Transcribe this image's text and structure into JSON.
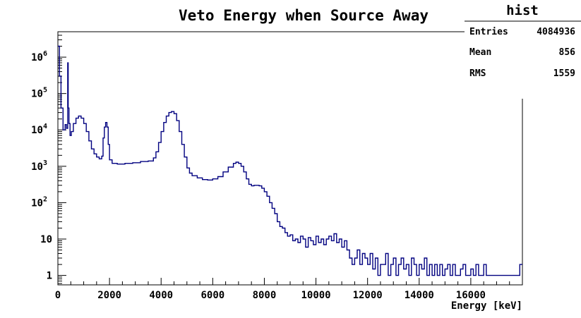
{
  "chart_data": {
    "type": "histogram",
    "title": "Veto Energy when Source Away",
    "xlabel": "Energy [keV]",
    "ylabel": "",
    "xlim": [
      0,
      18000
    ],
    "ylim": [
      0.55,
      5000000
    ],
    "yscale": "log",
    "line_color": "#000080",
    "x_ticks": [
      0,
      2000,
      4000,
      6000,
      8000,
      10000,
      12000,
      14000,
      16000
    ],
    "x_tick_labels": [
      "0",
      "2000",
      "4000",
      "6000",
      "8000",
      "10000",
      "12000",
      "14000",
      "16000"
    ],
    "y_ticks": [
      1,
      10,
      100,
      1000,
      10000,
      100000,
      1000000
    ],
    "y_tick_labels": [
      {
        "base": "1",
        "exp": ""
      },
      {
        "base": "10",
        "exp": ""
      },
      {
        "base": "10",
        "exp": "2"
      },
      {
        "base": "10",
        "exp": "3"
      },
      {
        "base": "10",
        "exp": "4"
      },
      {
        "base": "10",
        "exp": "5"
      },
      {
        "base": "10",
        "exp": "6"
      }
    ],
    "stats": {
      "name": "hist",
      "rows": [
        {
          "label": "Entries",
          "value": "4084936"
        },
        {
          "label": "Mean",
          "value": "856"
        },
        {
          "label": "RMS",
          "value": "1559"
        }
      ]
    },
    "points": [
      [
        0,
        2000000
      ],
      [
        60,
        300000
      ],
      [
        120,
        40000
      ],
      [
        200,
        10000
      ],
      [
        280,
        14000
      ],
      [
        330,
        11000
      ],
      [
        380,
        700000
      ],
      [
        400,
        40000
      ],
      [
        430,
        15000
      ],
      [
        470,
        7000
      ],
      [
        520,
        9000
      ],
      [
        600,
        15000
      ],
      [
        700,
        21000
      ],
      [
        800,
        24000
      ],
      [
        900,
        21000
      ],
      [
        1000,
        15000
      ],
      [
        1100,
        9000
      ],
      [
        1200,
        5000
      ],
      [
        1300,
        3000
      ],
      [
        1400,
        2200
      ],
      [
        1500,
        1800
      ],
      [
        1600,
        1600
      ],
      [
        1700,
        1900
      ],
      [
        1750,
        6000
      ],
      [
        1800,
        12000
      ],
      [
        1850,
        16000
      ],
      [
        1900,
        12000
      ],
      [
        1950,
        4000
      ],
      [
        2000,
        1500
      ],
      [
        2100,
        1200
      ],
      [
        2300,
        1150
      ],
      [
        2600,
        1200
      ],
      [
        2900,
        1250
      ],
      [
        3200,
        1350
      ],
      [
        3500,
        1400
      ],
      [
        3700,
        1700
      ],
      [
        3800,
        2500
      ],
      [
        3900,
        4500
      ],
      [
        4000,
        9000
      ],
      [
        4100,
        16000
      ],
      [
        4200,
        24000
      ],
      [
        4300,
        30000
      ],
      [
        4400,
        32000
      ],
      [
        4500,
        28000
      ],
      [
        4600,
        18000
      ],
      [
        4700,
        9000
      ],
      [
        4800,
        4000
      ],
      [
        4900,
        1800
      ],
      [
        5000,
        900
      ],
      [
        5100,
        650
      ],
      [
        5200,
        550
      ],
      [
        5400,
        480
      ],
      [
        5600,
        430
      ],
      [
        5800,
        420
      ],
      [
        6000,
        450
      ],
      [
        6200,
        520
      ],
      [
        6400,
        700
      ],
      [
        6600,
        950
      ],
      [
        6800,
        1200
      ],
      [
        6900,
        1300
      ],
      [
        7000,
        1200
      ],
      [
        7100,
        1000
      ],
      [
        7200,
        700
      ],
      [
        7300,
        450
      ],
      [
        7400,
        320
      ],
      [
        7500,
        290
      ],
      [
        7600,
        300
      ],
      [
        7700,
        300
      ],
      [
        7800,
        290
      ],
      [
        7900,
        250
      ],
      [
        8000,
        200
      ],
      [
        8100,
        150
      ],
      [
        8200,
        100
      ],
      [
        8300,
        70
      ],
      [
        8400,
        50
      ],
      [
        8500,
        30
      ],
      [
        8600,
        22
      ],
      [
        8700,
        20
      ],
      [
        8800,
        15
      ],
      [
        8900,
        12
      ],
      [
        9000,
        13
      ],
      [
        9100,
        9
      ],
      [
        9200,
        10
      ],
      [
        9300,
        8
      ],
      [
        9400,
        12
      ],
      [
        9500,
        10
      ],
      [
        9600,
        6
      ],
      [
        9700,
        11
      ],
      [
        9800,
        9
      ],
      [
        9900,
        7
      ],
      [
        10000,
        12
      ],
      [
        10100,
        8
      ],
      [
        10200,
        10
      ],
      [
        10300,
        7
      ],
      [
        10400,
        10
      ],
      [
        10500,
        12
      ],
      [
        10600,
        9
      ],
      [
        10700,
        14
      ],
      [
        10800,
        8
      ],
      [
        10900,
        10
      ],
      [
        11000,
        6
      ],
      [
        11100,
        9
      ],
      [
        11200,
        5
      ],
      [
        11300,
        3
      ],
      [
        11400,
        2
      ],
      [
        11500,
        3
      ],
      [
        11600,
        5
      ],
      [
        11700,
        2
      ],
      [
        11800,
        4
      ],
      [
        11900,
        3
      ],
      [
        12000,
        2
      ],
      [
        12100,
        4
      ],
      [
        12200,
        1.5
      ],
      [
        12300,
        3
      ],
      [
        12400,
        1
      ],
      [
        12500,
        2
      ],
      [
        12600,
        2
      ],
      [
        12700,
        4
      ],
      [
        12800,
        1
      ],
      [
        12900,
        2
      ],
      [
        13000,
        3
      ],
      [
        13100,
        1
      ],
      [
        13200,
        2
      ],
      [
        13300,
        3
      ],
      [
        13400,
        1.5
      ],
      [
        13500,
        2
      ],
      [
        13600,
        1
      ],
      [
        13700,
        3
      ],
      [
        13800,
        2
      ],
      [
        13900,
        1
      ],
      [
        14000,
        2
      ],
      [
        14100,
        1.5
      ],
      [
        14200,
        3
      ],
      [
        14300,
        1
      ],
      [
        14400,
        2
      ],
      [
        14500,
        1
      ],
      [
        14600,
        2
      ],
      [
        14700,
        1
      ],
      [
        14800,
        2
      ],
      [
        14900,
        1
      ],
      [
        15000,
        1.5
      ],
      [
        15100,
        2
      ],
      [
        15200,
        1
      ],
      [
        15300,
        2
      ],
      [
        15400,
        1
      ],
      [
        15500,
        1
      ],
      [
        15600,
        1.5
      ],
      [
        15700,
        2
      ],
      [
        15800,
        1
      ],
      [
        15900,
        1
      ],
      [
        16000,
        1.5
      ],
      [
        16100,
        1
      ],
      [
        16200,
        2
      ],
      [
        16300,
        1
      ],
      [
        16400,
        1
      ],
      [
        16500,
        2
      ],
      [
        16600,
        1
      ],
      [
        16700,
        1
      ],
      [
        16800,
        1
      ],
      [
        16900,
        1
      ],
      [
        17000,
        1
      ],
      [
        17200,
        1
      ],
      [
        17400,
        1
      ],
      [
        17600,
        1
      ],
      [
        17800,
        1
      ],
      [
        17900,
        2
      ]
    ]
  }
}
